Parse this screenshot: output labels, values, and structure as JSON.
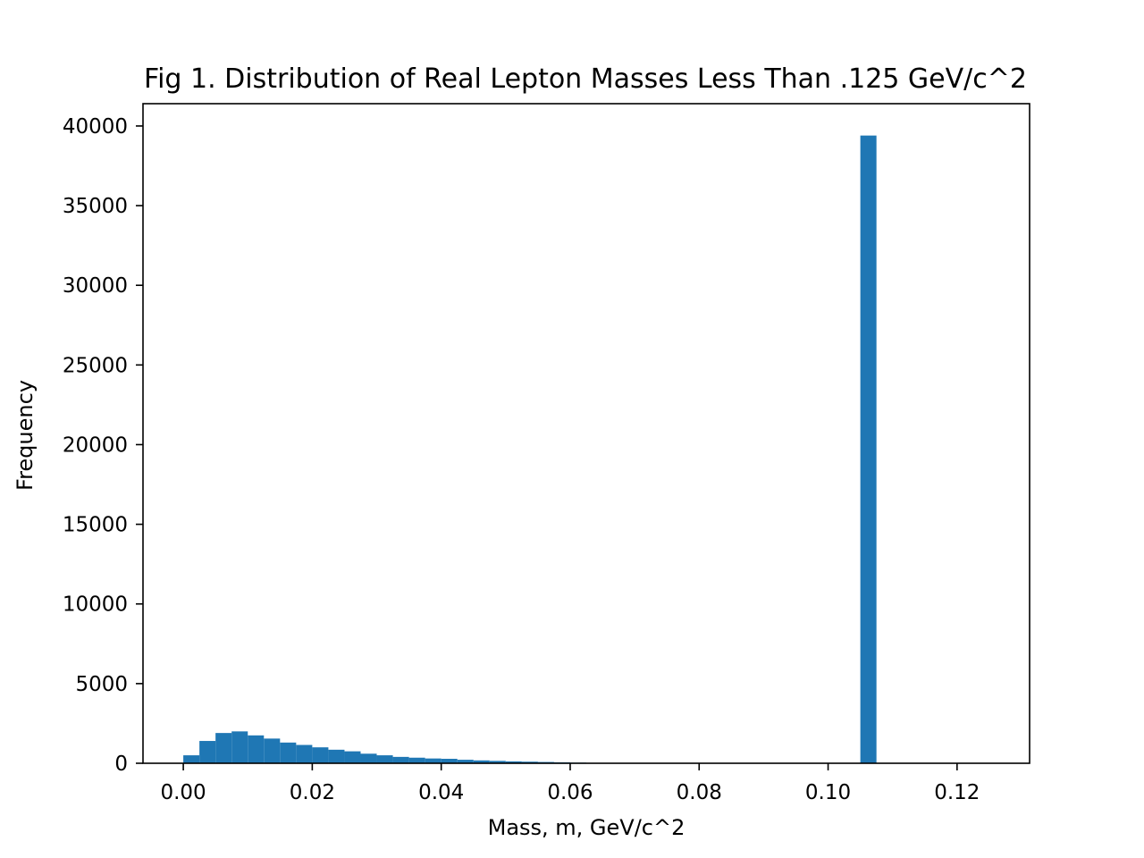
{
  "chart_data": {
    "type": "bar",
    "title": "Fig 1. Distribution of Real Lepton Masses Less Than .125 GeV/c^2",
    "xlabel": "Mass, m, GeV/c^2",
    "ylabel": "Frequency",
    "xlim": [
      -0.00625,
      0.13125
    ],
    "ylim": [
      0,
      41400
    ],
    "xticks": [
      0.0,
      0.02,
      0.04,
      0.06,
      0.08,
      0.1,
      0.12
    ],
    "xtick_labels": [
      "0.00",
      "0.02",
      "0.04",
      "0.06",
      "0.08",
      "0.10",
      "0.12"
    ],
    "yticks": [
      0,
      5000,
      10000,
      15000,
      20000,
      25000,
      30000,
      35000,
      40000
    ],
    "ytick_labels": [
      "0",
      "5000",
      "10000",
      "15000",
      "20000",
      "25000",
      "30000",
      "35000",
      "40000"
    ],
    "bin_width": 0.0025,
    "bin_start": 0.0,
    "values": [
      500,
      1400,
      1900,
      2000,
      1750,
      1550,
      1300,
      1150,
      1000,
      850,
      750,
      600,
      500,
      400,
      350,
      300,
      280,
      220,
      180,
      150,
      120,
      100,
      80,
      60,
      40,
      20,
      10,
      5,
      3,
      2,
      1,
      1,
      1,
      1,
      1,
      1,
      1,
      1,
      1,
      1,
      1,
      1,
      39400,
      0,
      0,
      0,
      0,
      0,
      0,
      0
    ],
    "color": "#1f77b4",
    "grid": false,
    "legend": false
  }
}
